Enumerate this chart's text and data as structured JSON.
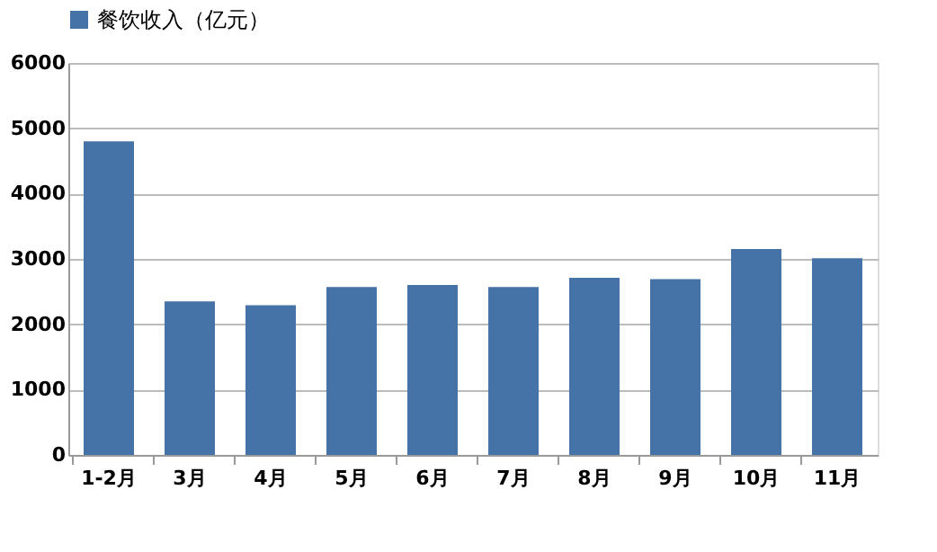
{
  "chart_data": {
    "type": "bar",
    "categories": [
      "1-2月",
      "3月",
      "4月",
      "5月",
      "6月",
      "7月",
      "8月",
      "9月",
      "10月",
      "11月"
    ],
    "series": [
      {
        "name": "餐饮收入（亿元）",
        "color": "#4572a7",
        "values": [
          4800,
          2350,
          2290,
          2570,
          2600,
          2570,
          2710,
          2690,
          3150,
          3010
        ]
      }
    ],
    "ylim": [
      0,
      6000
    ],
    "yticks": [
      0,
      1000,
      2000,
      3000,
      4000,
      5000,
      6000
    ],
    "grid": "y",
    "legend": "top"
  }
}
